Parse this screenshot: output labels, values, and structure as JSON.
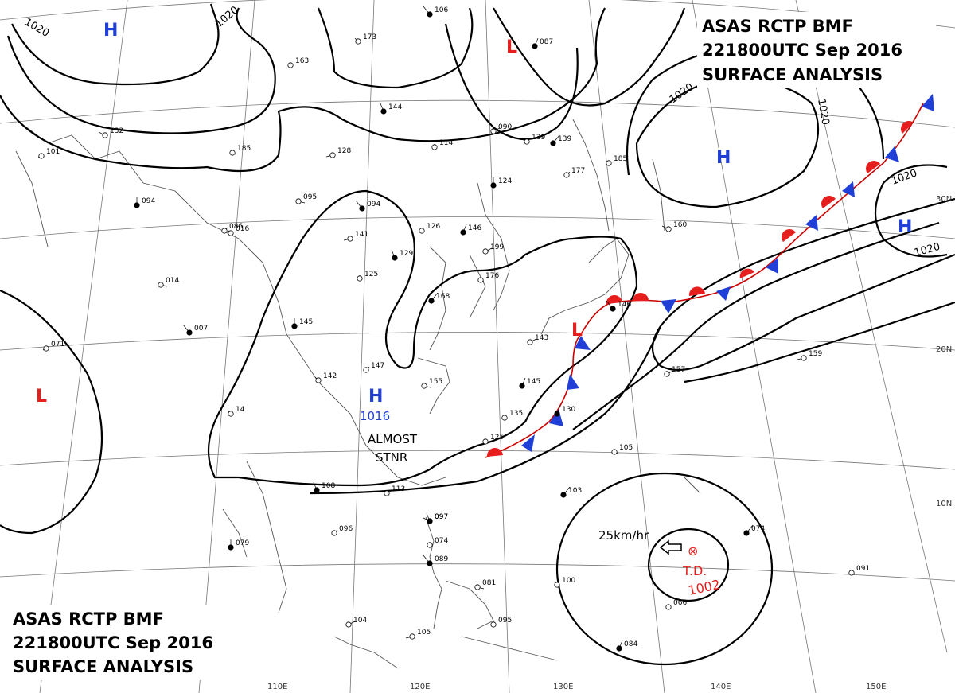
{
  "header_top": {
    "line1": "ASAS   RCTP   BMF",
    "line2": "221800UTC   Sep   2016",
    "line3": "SURFACE  ANALYSIS"
  },
  "header_bottom": {
    "line1": "ASAS   RCTP   BMF",
    "line2": "221800UTC   Sep   2016",
    "line3": "SURFACE  ANALYSIS"
  },
  "pressure_centers": [
    {
      "type": "H",
      "color": "#1f3fd6"
    },
    {
      "type": "L",
      "color": "#e61e1e"
    },
    {
      "type": "H",
      "color": "#1f3fd6"
    },
    {
      "type": "H",
      "color": "#1f3fd6"
    },
    {
      "type": "L",
      "color": "#e61e1e"
    },
    {
      "type": "H",
      "color": "#1f3fd6",
      "value": "1016"
    },
    {
      "type": "L",
      "color": "#e61e1e"
    }
  ],
  "isobar_labels": [
    "1020",
    "1020",
    "1020",
    "1020",
    "1020",
    "1020"
  ],
  "annotations": {
    "stationary_line1": "ALMOST",
    "stationary_line2": "STNR",
    "storm_speed": "25km/hr",
    "storm_name": "T.D.",
    "storm_pressure": "1002",
    "storm_symbol": "⊗"
  },
  "latitude_labels": [
    "30N",
    "20N",
    "10N"
  ],
  "longitude_labels": [
    "110E",
    "120E",
    "130E",
    "140E",
    "150E"
  ],
  "stations": [
    "106",
    "173",
    "163",
    "087",
    "090",
    "128",
    "144",
    "114",
    "185",
    "139",
    "139",
    "185",
    "124",
    "177",
    "095",
    "094",
    "016",
    "126",
    "146",
    "199",
    "141",
    "129",
    "125",
    "176",
    "168",
    "160",
    "071",
    "145",
    "147",
    "155",
    "146",
    "142",
    "125",
    "130",
    "157",
    "159",
    "108",
    "113",
    "105",
    "103",
    "097",
    "074",
    "079",
    "096",
    "081",
    "089",
    "100",
    "066",
    "084",
    "104",
    "105",
    "097",
    "095",
    "091",
    "074",
    "132",
    "101",
    "094",
    "086",
    "014",
    "007",
    "14",
    "135",
    "145",
    "143"
  ],
  "colors": {
    "warm_front": "#e61e1e",
    "cold_front": "#1f3fd6",
    "isobar": "#000000",
    "grid": "#777777",
    "coast": "#555555"
  }
}
